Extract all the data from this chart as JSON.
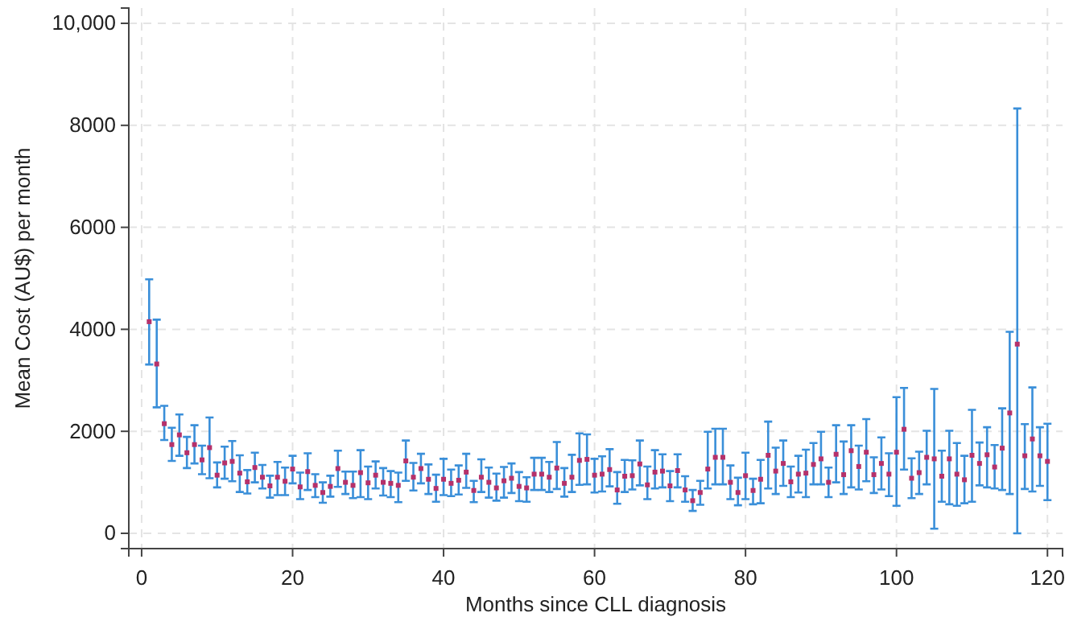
{
  "chart_data": {
    "type": "scatter",
    "xlabel": "Months since CLL diagnosis",
    "ylabel": "Mean Cost (AU$) per month",
    "xlim": [
      -1.7,
      122
    ],
    "ylim": [
      -300,
      10300
    ],
    "xticks": [
      0,
      20,
      40,
      60,
      80,
      100,
      120
    ],
    "yticks": [
      0,
      2000,
      4000,
      6000,
      8000,
      {
        "value": 10000,
        "label": "10,000"
      }
    ],
    "grid": true,
    "marker": "square",
    "x": [
      1,
      2,
      3,
      4,
      5,
      6,
      7,
      8,
      9,
      10,
      11,
      12,
      13,
      14,
      15,
      16,
      17,
      18,
      19,
      20,
      21,
      22,
      23,
      24,
      25,
      26,
      27,
      28,
      29,
      30,
      31,
      32,
      33,
      34,
      35,
      36,
      37,
      38,
      39,
      40,
      41,
      42,
      43,
      44,
      45,
      46,
      47,
      48,
      49,
      50,
      51,
      52,
      53,
      54,
      55,
      56,
      57,
      58,
      59,
      60,
      61,
      62,
      63,
      64,
      65,
      66,
      67,
      68,
      69,
      70,
      71,
      72,
      73,
      74,
      75,
      76,
      77,
      78,
      79,
      80,
      81,
      82,
      83,
      84,
      85,
      86,
      87,
      88,
      89,
      90,
      91,
      92,
      93,
      94,
      95,
      96,
      97,
      98,
      99,
      100,
      101,
      102,
      103,
      104,
      105,
      106,
      107,
      108,
      109,
      110,
      111,
      112,
      113,
      114,
      115,
      116,
      117,
      118,
      119,
      120
    ],
    "series": [
      {
        "color": "#b5316a",
        "values": [
          4150,
          3320,
          2150,
          1740,
          1930,
          1580,
          1740,
          1440,
          1680,
          1140,
          1380,
          1410,
          1180,
          1010,
          1290,
          1100,
          930,
          1100,
          1020,
          1260,
          910,
          1210,
          940,
          800,
          920,
          1270,
          1000,
          940,
          1190,
          990,
          1140,
          1000,
          980,
          940,
          1420,
          1100,
          1270,
          1060,
          880,
          1060,
          980,
          1040,
          1200,
          840,
          1100,
          1000,
          890,
          1030,
          1080,
          920,
          890,
          1160,
          1160,
          1100,
          1280,
          980,
          1100,
          1430,
          1450,
          1140,
          1160,
          1250,
          850,
          1120,
          1130,
          1360,
          950,
          1200,
          1220,
          930,
          1230,
          850,
          640,
          800,
          1260,
          1490,
          1490,
          1000,
          800,
          1130,
          840,
          1060,
          1530,
          1220,
          1370,
          1010,
          1160,
          1180,
          1350,
          1460,
          1000,
          1550,
          1150,
          1620,
          1310,
          1590,
          1150,
          1370,
          1160,
          1590,
          2040,
          1080,
          1190,
          1490,
          1460,
          1120,
          1460,
          1160,
          1050,
          1530,
          1370,
          1540,
          1300,
          1670,
          2360,
          3710,
          1520,
          1850,
          1520,
          1410
        ],
        "errors": [
          [
            3310,
            4980
          ],
          [
            2470,
            4190
          ],
          [
            1830,
            2500
          ],
          [
            1420,
            2070
          ],
          [
            1520,
            2330
          ],
          [
            1280,
            1890
          ],
          [
            1370,
            2120
          ],
          [
            1160,
            1720
          ],
          [
            1080,
            2270
          ],
          [
            900,
            1390
          ],
          [
            1070,
            1700
          ],
          [
            1020,
            1810
          ],
          [
            810,
            1530
          ],
          [
            780,
            1240
          ],
          [
            1000,
            1580
          ],
          [
            880,
            1340
          ],
          [
            700,
            1130
          ],
          [
            750,
            1400
          ],
          [
            750,
            1290
          ],
          [
            980,
            1520
          ],
          [
            670,
            1190
          ],
          [
            850,
            1570
          ],
          [
            710,
            1160
          ],
          [
            600,
            1000
          ],
          [
            720,
            1130
          ],
          [
            910,
            1620
          ],
          [
            770,
            1210
          ],
          [
            690,
            1210
          ],
          [
            710,
            1630
          ],
          [
            670,
            1310
          ],
          [
            880,
            1410
          ],
          [
            740,
            1280
          ],
          [
            710,
            1220
          ],
          [
            610,
            1190
          ],
          [
            1030,
            1820
          ],
          [
            840,
            1380
          ],
          [
            980,
            1560
          ],
          [
            770,
            1350
          ],
          [
            620,
            1150
          ],
          [
            750,
            1460
          ],
          [
            730,
            1250
          ],
          [
            760,
            1330
          ],
          [
            890,
            1560
          ],
          [
            610,
            1030
          ],
          [
            810,
            1450
          ],
          [
            700,
            1290
          ],
          [
            640,
            1170
          ],
          [
            700,
            1300
          ],
          [
            790,
            1370
          ],
          [
            630,
            1200
          ],
          [
            620,
            1100
          ],
          [
            850,
            1480
          ],
          [
            850,
            1480
          ],
          [
            810,
            1400
          ],
          [
            870,
            1790
          ],
          [
            720,
            1280
          ],
          [
            810,
            1540
          ],
          [
            950,
            1960
          ],
          [
            960,
            1940
          ],
          [
            800,
            1460
          ],
          [
            820,
            1510
          ],
          [
            920,
            1650
          ],
          [
            580,
            1200
          ],
          [
            810,
            1440
          ],
          [
            860,
            1430
          ],
          [
            940,
            1820
          ],
          [
            670,
            1310
          ],
          [
            880,
            1630
          ],
          [
            900,
            1550
          ],
          [
            630,
            1220
          ],
          [
            900,
            1550
          ],
          [
            620,
            1120
          ],
          [
            440,
            850
          ],
          [
            560,
            1030
          ],
          [
            880,
            1990
          ],
          [
            960,
            2050
          ],
          [
            960,
            2050
          ],
          [
            670,
            1330
          ],
          [
            550,
            1090
          ],
          [
            670,
            1580
          ],
          [
            570,
            1070
          ],
          [
            590,
            1440
          ],
          [
            880,
            2190
          ],
          [
            770,
            1680
          ],
          [
            930,
            1820
          ],
          [
            710,
            1310
          ],
          [
            800,
            1520
          ],
          [
            710,
            1640
          ],
          [
            960,
            1770
          ],
          [
            960,
            1990
          ],
          [
            710,
            1290
          ],
          [
            1000,
            2120
          ],
          [
            770,
            1800
          ],
          [
            900,
            2120
          ],
          [
            860,
            1720
          ],
          [
            1020,
            2240
          ],
          [
            790,
            1490
          ],
          [
            860,
            1880
          ],
          [
            730,
            1570
          ],
          [
            540,
            2670
          ],
          [
            1250,
            2850
          ],
          [
            690,
            1470
          ],
          [
            770,
            1600
          ],
          [
            960,
            2010
          ],
          [
            90,
            2830
          ],
          [
            620,
            1620
          ],
          [
            570,
            2010
          ],
          [
            540,
            1770
          ],
          [
            590,
            1520
          ],
          [
            620,
            2420
          ],
          [
            940,
            1780
          ],
          [
            900,
            2080
          ],
          [
            880,
            1730
          ],
          [
            850,
            2450
          ],
          [
            770,
            3950
          ],
          [
            0,
            8330
          ],
          [
            870,
            2140
          ],
          [
            820,
            2860
          ],
          [
            930,
            2080
          ],
          [
            650,
            2150
          ]
        ]
      }
    ]
  }
}
